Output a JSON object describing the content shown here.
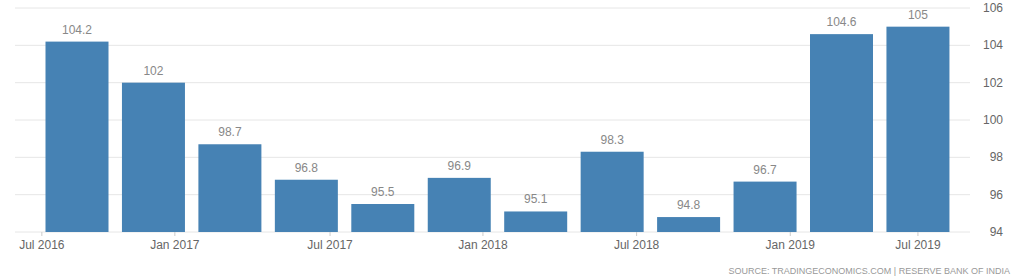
{
  "chart_data": {
    "type": "bar",
    "categories": [
      null,
      null,
      null,
      null,
      null,
      null,
      null,
      null,
      null,
      null,
      null,
      null
    ],
    "values": [
      104.2,
      102,
      98.7,
      96.8,
      95.5,
      96.9,
      95.1,
      98.3,
      94.8,
      96.7,
      104.6,
      105
    ],
    "color": "#4682b4",
    "data_labels": true,
    "xticks": [
      {
        "value": -0.46,
        "label": "Jul 2016"
      },
      {
        "value": 1.28,
        "label": "Jan 2017"
      },
      {
        "value": 3.31,
        "label": "Jul 2017"
      },
      {
        "value": 5.31,
        "label": "Jan 2018"
      },
      {
        "value": 7.32,
        "label": "Jul 2018"
      },
      {
        "value": 9.33,
        "label": "Jan 2019"
      },
      {
        "value": 11,
        "label": "Jul 2019"
      }
    ],
    "ylim": [
      94,
      106
    ],
    "yticks": [
      94,
      96,
      98,
      100,
      102,
      104,
      106
    ],
    "grid": true,
    "source": "SOURCE: TRADINGECONOMICS.COM | RESERVE BANK OF INDIA"
  }
}
